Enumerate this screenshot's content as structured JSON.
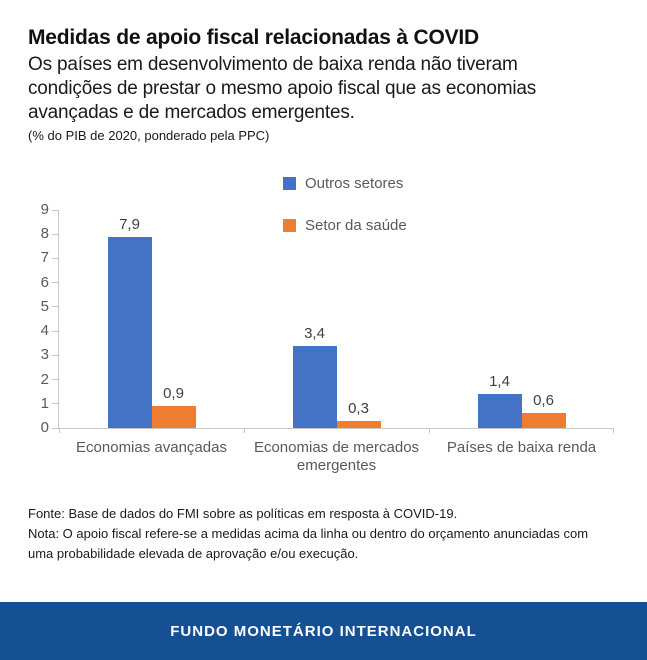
{
  "header": {
    "title": "Medidas de apoio fiscal relacionadas à COVID",
    "subtitle": "Os países em desenvolvimento de baixa renda não tiveram condições de prestar o mesmo apoio fiscal que as economias avançadas e de mercados emergentes.",
    "unit_note": "(% do PIB de 2020, ponderado pela PPC)"
  },
  "chart_data": {
    "type": "bar",
    "categories": [
      "Economias avançadas",
      "Economias de mercados emergentes",
      "Países de baixa renda"
    ],
    "series": [
      {
        "name": "Outros setores",
        "color": "#4472C4",
        "values": [
          7.9,
          3.4,
          1.4
        ],
        "labels": [
          "7,9",
          "3,4",
          "1,4"
        ]
      },
      {
        "name": "Setor da saúde",
        "color": "#ED7D31",
        "values": [
          0.9,
          0.3,
          0.6
        ],
        "labels": [
          "0,9",
          "0,3",
          "0,6"
        ]
      }
    ],
    "title": "Medidas de apoio fiscal relacionadas à COVID",
    "xlabel": "",
    "ylabel": "% do PIB de 2020, ponderado pela PPC",
    "ylim": [
      0,
      9
    ],
    "yticks": [
      0,
      1,
      2,
      3,
      4,
      5,
      6,
      7,
      8,
      9
    ],
    "grid": false,
    "legend_position": "top-center-stacked",
    "decimal_separator": ","
  },
  "footer": {
    "source": "Fonte: Base de dados do FMI sobre as políticas em resposta à COVID-19.",
    "note": "Nota: O apoio fiscal refere-se a medidas acima da linha ou dentro do orçamento anunciadas com uma probabilidade elevada de aprovação e/ou execução."
  },
  "banner": {
    "label": "FUNDO MONETÁRIO INTERNACIONAL",
    "background": "#155094"
  },
  "colors": {
    "axis_line": "#c8c8c8",
    "axis_text": "#595959",
    "data_label": "#404040",
    "series_blue": "#4472C4",
    "series_orange": "#ED7D31"
  }
}
